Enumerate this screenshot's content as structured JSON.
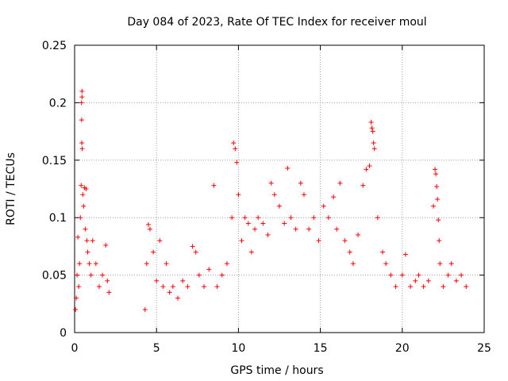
{
  "chart_data": {
    "type": "scatter",
    "title": "Day 084 of 2023, Rate Of TEC Index for receiver moul",
    "xlabel": "GPS time / hours",
    "ylabel": "ROTI / TECUs",
    "xlim": [
      0,
      25
    ],
    "ylim": [
      0,
      0.25
    ],
    "x_ticks": [
      "0",
      "5",
      "10",
      "15",
      "20",
      "25"
    ],
    "y_ticks": [
      "0",
      "0.05",
      "0.1",
      "0.15",
      "0.2",
      "0.25"
    ],
    "grid": true,
    "marker": "+",
    "color": "#ff0000",
    "series": [
      {
        "name": "",
        "points": [
          [
            0.05,
            0.02
          ],
          [
            0.1,
            0.03
          ],
          [
            0.15,
            0.05
          ],
          [
            0.2,
            0.083
          ],
          [
            0.25,
            0.04
          ],
          [
            0.3,
            0.06
          ],
          [
            0.35,
            0.1
          ],
          [
            0.4,
            0.128
          ],
          [
            0.45,
            0.21
          ],
          [
            0.45,
            0.205
          ],
          [
            0.42,
            0.2
          ],
          [
            0.43,
            0.185
          ],
          [
            0.44,
            0.165
          ],
          [
            0.46,
            0.16
          ],
          [
            0.5,
            0.12
          ],
          [
            0.55,
            0.11
          ],
          [
            0.6,
            0.126
          ],
          [
            0.65,
            0.09
          ],
          [
            0.7,
            0.125
          ],
          [
            0.75,
            0.08
          ],
          [
            0.8,
            0.07
          ],
          [
            0.9,
            0.06
          ],
          [
            1.0,
            0.05
          ],
          [
            1.1,
            0.08
          ],
          [
            1.3,
            0.06
          ],
          [
            1.5,
            0.04
          ],
          [
            1.7,
            0.05
          ],
          [
            1.9,
            0.076
          ],
          [
            2.0,
            0.045
          ],
          [
            2.1,
            0.035
          ],
          [
            4.3,
            0.02
          ],
          [
            4.4,
            0.06
          ],
          [
            4.5,
            0.094
          ],
          [
            4.6,
            0.09
          ],
          [
            4.8,
            0.07
          ],
          [
            5.0,
            0.045
          ],
          [
            5.2,
            0.08
          ],
          [
            5.4,
            0.04
          ],
          [
            5.6,
            0.06
          ],
          [
            5.8,
            0.035
          ],
          [
            6.0,
            0.04
          ],
          [
            6.3,
            0.03
          ],
          [
            6.6,
            0.045
          ],
          [
            6.9,
            0.04
          ],
          [
            7.2,
            0.075
          ],
          [
            7.4,
            0.07
          ],
          [
            7.6,
            0.05
          ],
          [
            7.9,
            0.04
          ],
          [
            8.2,
            0.055
          ],
          [
            8.5,
            0.128
          ],
          [
            8.7,
            0.04
          ],
          [
            9.0,
            0.05
          ],
          [
            9.3,
            0.06
          ],
          [
            9.6,
            0.1
          ],
          [
            9.7,
            0.165
          ],
          [
            9.8,
            0.16
          ],
          [
            9.9,
            0.148
          ],
          [
            10.0,
            0.12
          ],
          [
            10.2,
            0.08
          ],
          [
            10.4,
            0.1
          ],
          [
            10.6,
            0.095
          ],
          [
            10.8,
            0.07
          ],
          [
            11.0,
            0.09
          ],
          [
            11.2,
            0.1
          ],
          [
            11.5,
            0.095
          ],
          [
            11.8,
            0.085
          ],
          [
            12.0,
            0.13
          ],
          [
            12.2,
            0.12
          ],
          [
            12.5,
            0.11
          ],
          [
            12.8,
            0.095
          ],
          [
            13.0,
            0.143
          ],
          [
            13.2,
            0.1
          ],
          [
            13.5,
            0.09
          ],
          [
            13.8,
            0.13
          ],
          [
            14.0,
            0.12
          ],
          [
            14.3,
            0.09
          ],
          [
            14.6,
            0.1
          ],
          [
            14.9,
            0.08
          ],
          [
            15.2,
            0.11
          ],
          [
            15.5,
            0.1
          ],
          [
            15.8,
            0.118
          ],
          [
            16.0,
            0.09
          ],
          [
            16.2,
            0.13
          ],
          [
            16.5,
            0.08
          ],
          [
            16.8,
            0.07
          ],
          [
            17.0,
            0.06
          ],
          [
            17.3,
            0.085
          ],
          [
            17.6,
            0.128
          ],
          [
            17.8,
            0.142
          ],
          [
            18.0,
            0.145
          ],
          [
            18.1,
            0.183
          ],
          [
            18.15,
            0.178
          ],
          [
            18.2,
            0.175
          ],
          [
            18.25,
            0.165
          ],
          [
            18.3,
            0.16
          ],
          [
            18.5,
            0.1
          ],
          [
            18.8,
            0.07
          ],
          [
            19.0,
            0.06
          ],
          [
            19.3,
            0.05
          ],
          [
            19.6,
            0.04
          ],
          [
            20.0,
            0.05
          ],
          [
            20.2,
            0.068
          ],
          [
            20.5,
            0.04
          ],
          [
            20.8,
            0.045
          ],
          [
            21.0,
            0.05
          ],
          [
            21.3,
            0.04
          ],
          [
            21.6,
            0.045
          ],
          [
            21.9,
            0.11
          ],
          [
            22.0,
            0.142
          ],
          [
            22.05,
            0.138
          ],
          [
            22.1,
            0.127
          ],
          [
            22.15,
            0.116
          ],
          [
            22.2,
            0.098
          ],
          [
            22.25,
            0.08
          ],
          [
            22.3,
            0.06
          ],
          [
            22.5,
            0.04
          ],
          [
            22.8,
            0.05
          ],
          [
            23.0,
            0.06
          ],
          [
            23.3,
            0.045
          ],
          [
            23.6,
            0.05
          ],
          [
            23.9,
            0.04
          ]
        ]
      }
    ]
  }
}
